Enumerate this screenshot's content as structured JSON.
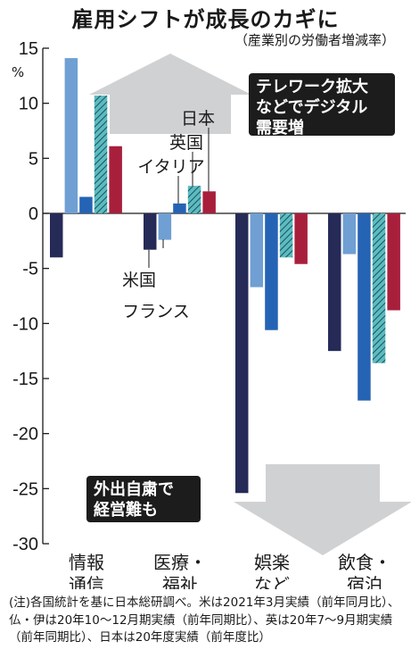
{
  "title": "雇用シフトが成長のカギに",
  "subtitle": "（産業別の労働者増減率）",
  "unit": "%",
  "callouts": {
    "up": [
      "テレワーク拡大",
      "などでデジタル",
      "需要増"
    ],
    "down": [
      "外出自粛で",
      "経営難も"
    ]
  },
  "note": "(注)各国統計を基に日本総研調べ。米は2021年3月実績（前年同月比）、仏・伊は20年10～12月期実績（前年同期比）、英は20年7～9月期実績（前年同期比）、日本は20年度実績（前年度比）",
  "colors": {
    "米国": "#252a57",
    "フランス": "#6f9fd3",
    "イタリア": "#2563b4",
    "英国": "#5bbcc0",
    "日本": "#a81f3c",
    "arrow": "#d0d1d3",
    "callout_bg": "#1c1c1c"
  },
  "chart_data": {
    "type": "bar",
    "title": "雇用シフトが成長のカギに",
    "subtitle": "（産業別の労働者増減率）",
    "ylabel": "%",
    "ylim": [
      -30,
      15
    ],
    "yticks": [
      15,
      10,
      5,
      0,
      -5,
      -10,
      -15,
      -20,
      -25,
      -30
    ],
    "categories": [
      [
        "情報",
        "通信"
      ],
      [
        "医療・",
        "福祉"
      ],
      [
        "娯楽",
        "など"
      ],
      [
        "飲食・",
        "宿泊"
      ]
    ],
    "series": [
      {
        "name": "米国",
        "values": [
          -4.0,
          -3.3,
          -25.4,
          -12.5
        ]
      },
      {
        "name": "フランス",
        "values": [
          14.1,
          -2.4,
          -6.7,
          -3.7
        ]
      },
      {
        "name": "イタリア",
        "values": [
          1.5,
          0.9,
          -10.6,
          -17.0
        ]
      },
      {
        "name": "英国",
        "values": [
          10.7,
          2.5,
          -4.0,
          -13.6
        ]
      },
      {
        "name": "日本",
        "values": [
          6.1,
          2.0,
          -4.6,
          -8.8
        ]
      }
    ]
  }
}
